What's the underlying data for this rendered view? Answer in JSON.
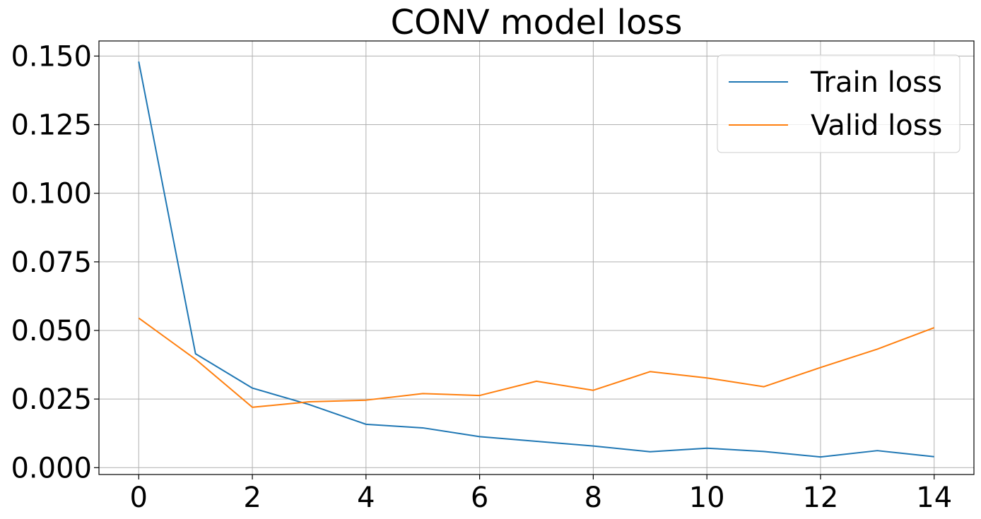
{
  "chart_data": {
    "type": "line",
    "title": "CONV model loss",
    "xlabel": "",
    "ylabel": "",
    "x": [
      0,
      1,
      2,
      3,
      4,
      5,
      6,
      7,
      8,
      9,
      10,
      11,
      12,
      13,
      14
    ],
    "xlim": [
      -0.7,
      14.7
    ],
    "ylim": [
      -0.0025,
      0.1555
    ],
    "xticks": [
      0,
      2,
      4,
      6,
      8,
      10,
      12,
      14
    ],
    "yticks": [
      0.0,
      0.025,
      0.05,
      0.075,
      0.1,
      0.125,
      0.15
    ],
    "ytick_labels": [
      "0.000",
      "0.025",
      "0.050",
      "0.075",
      "0.100",
      "0.125",
      "0.150"
    ],
    "grid": true,
    "legend_position": "top-right",
    "series": [
      {
        "name": "Train loss",
        "color": "#1f77b4",
        "values": [
          0.148,
          0.0415,
          0.029,
          0.023,
          0.0158,
          0.0145,
          0.0113,
          0.0096,
          0.0079,
          0.0058,
          0.0071,
          0.0059,
          0.0039,
          0.0062,
          0.004
        ]
      },
      {
        "name": "Valid loss",
        "color": "#ff7f0e",
        "values": [
          0.0545,
          0.0395,
          0.022,
          0.024,
          0.0246,
          0.027,
          0.0263,
          0.0315,
          0.0282,
          0.035,
          0.0327,
          0.0295,
          0.0365,
          0.0432,
          0.051
        ]
      }
    ]
  }
}
